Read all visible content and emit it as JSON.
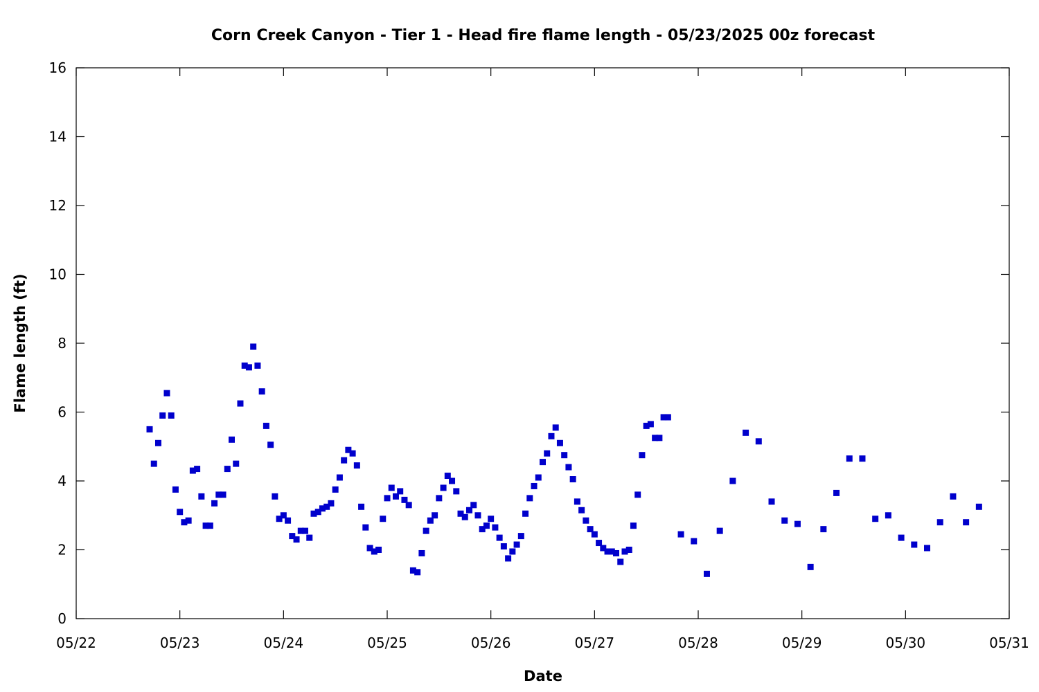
{
  "chart_data": {
    "type": "scatter",
    "title": "Corn Creek Canyon - Tier 1 - Head fire flame length - 05/23/2025 00z forecast",
    "xlabel": "Date",
    "ylabel": "Flame length (ft)",
    "x_ticks": [
      "05/22",
      "05/23",
      "05/24",
      "05/25",
      "05/26",
      "05/27",
      "05/28",
      "05/29",
      "05/30",
      "05/31"
    ],
    "y_ticks": [
      "0",
      "2",
      "4",
      "6",
      "8",
      "10",
      "12",
      "14",
      "16"
    ],
    "ylim": [
      0,
      16
    ],
    "xlim": [
      "05/22 00:00",
      "05/31 00:00"
    ],
    "grid": false,
    "marker_color": "#0000cc",
    "series": [
      {
        "x": [
          "05/22 17:00",
          "05/22 18:00",
          "05/22 19:00",
          "05/22 20:00",
          "05/22 21:00",
          "05/22 22:00",
          "05/22 23:00",
          "05/23 00:00",
          "05/23 01:00",
          "05/23 02:00",
          "05/23 03:00",
          "05/23 04:00",
          "05/23 05:00",
          "05/23 06:00",
          "05/23 07:00",
          "05/23 08:00",
          "05/23 09:00",
          "05/23 10:00",
          "05/23 11:00",
          "05/23 12:00",
          "05/23 13:00",
          "05/23 14:00",
          "05/23 15:00",
          "05/23 16:00",
          "05/23 17:00",
          "05/23 18:00",
          "05/23 19:00",
          "05/23 20:00",
          "05/23 21:00",
          "05/23 22:00",
          "05/23 23:00",
          "05/24 00:00",
          "05/24 01:00",
          "05/24 02:00",
          "05/24 03:00",
          "05/24 04:00",
          "05/24 05:00",
          "05/24 06:00",
          "05/24 07:00",
          "05/24 08:00",
          "05/24 09:00",
          "05/24 10:00",
          "05/24 11:00",
          "05/24 12:00",
          "05/24 13:00",
          "05/24 14:00",
          "05/24 15:00",
          "05/24 16:00",
          "05/24 17:00",
          "05/24 18:00",
          "05/24 19:00",
          "05/24 20:00",
          "05/24 21:00",
          "05/24 22:00",
          "05/24 23:00",
          "05/25 00:00",
          "05/25 01:00",
          "05/25 02:00",
          "05/25 03:00",
          "05/25 04:00",
          "05/25 05:00",
          "05/25 06:00",
          "05/25 07:00",
          "05/25 08:00",
          "05/25 09:00",
          "05/25 10:00",
          "05/25 11:00",
          "05/25 12:00",
          "05/25 13:00",
          "05/25 14:00",
          "05/25 15:00",
          "05/25 16:00",
          "05/25 17:00",
          "05/25 18:00",
          "05/25 19:00",
          "05/25 20:00",
          "05/25 21:00",
          "05/25 22:00",
          "05/25 23:00",
          "05/26 00:00",
          "05/26 01:00",
          "05/26 02:00",
          "05/26 03:00",
          "05/26 04:00",
          "05/26 05:00",
          "05/26 06:00",
          "05/26 07:00",
          "05/26 08:00",
          "05/26 09:00",
          "05/26 10:00",
          "05/26 11:00",
          "05/26 12:00",
          "05/26 13:00",
          "05/26 14:00",
          "05/26 15:00",
          "05/26 16:00",
          "05/26 17:00",
          "05/26 18:00",
          "05/26 19:00",
          "05/26 20:00",
          "05/26 21:00",
          "05/26 22:00",
          "05/26 23:00",
          "05/27 00:00",
          "05/27 01:00",
          "05/27 02:00",
          "05/27 03:00",
          "05/27 04:00",
          "05/27 05:00",
          "05/27 06:00",
          "05/27 07:00",
          "05/27 08:00",
          "05/27 09:00",
          "05/27 10:00",
          "05/27 11:00",
          "05/27 12:00",
          "05/27 13:00",
          "05/27 14:00",
          "05/27 15:00",
          "05/27 16:00",
          "05/27 17:00",
          "05/27 20:00",
          "05/27 23:00",
          "05/28 02:00",
          "05/28 05:00",
          "05/28 08:00",
          "05/28 11:00",
          "05/28 14:00",
          "05/28 17:00",
          "05/28 20:00",
          "05/28 23:00",
          "05/29 02:00",
          "05/29 05:00",
          "05/29 08:00",
          "05/29 11:00",
          "05/29 14:00",
          "05/29 17:00",
          "05/29 20:00",
          "05/29 23:00",
          "05/30 02:00",
          "05/30 05:00",
          "05/30 08:00",
          "05/30 11:00",
          "05/30 14:00",
          "05/30 17:00"
        ],
        "y": [
          5.5,
          4.5,
          5.1,
          5.9,
          6.55,
          5.9,
          3.75,
          3.1,
          2.8,
          2.85,
          4.3,
          4.35,
          3.55,
          2.7,
          2.7,
          3.35,
          3.6,
          3.6,
          4.35,
          5.2,
          4.5,
          6.25,
          7.35,
          7.3,
          7.9,
          7.35,
          6.6,
          5.6,
          5.05,
          3.55,
          2.9,
          3.0,
          2.85,
          2.4,
          2.3,
          2.55,
          2.55,
          2.35,
          3.05,
          3.1,
          3.2,
          3.25,
          3.35,
          3.75,
          4.1,
          4.6,
          4.9,
          4.8,
          4.45,
          3.25,
          2.65,
          2.05,
          1.95,
          2.0,
          2.9,
          3.5,
          3.8,
          3.55,
          3.7,
          3.45,
          3.3,
          1.4,
          1.35,
          1.9,
          2.55,
          2.85,
          3.0,
          3.5,
          3.8,
          4.15,
          4.0,
          3.7,
          3.05,
          2.95,
          3.15,
          3.3,
          3.0,
          2.6,
          2.7,
          2.9,
          2.65,
          2.35,
          2.1,
          1.75,
          1.95,
          2.15,
          2.4,
          3.05,
          3.5,
          3.85,
          4.1,
          4.55,
          4.8,
          5.3,
          5.55,
          5.1,
          4.75,
          4.4,
          4.05,
          3.4,
          3.15,
          2.85,
          2.6,
          2.45,
          2.2,
          2.05,
          1.95,
          1.95,
          1.9,
          1.65,
          1.95,
          2.0,
          2.7,
          3.6,
          4.75,
          5.6,
          5.65,
          5.25,
          5.25,
          5.85,
          5.85,
          2.45,
          2.25,
          1.3,
          2.55,
          4.0,
          5.4,
          5.15,
          3.4,
          2.85,
          2.75,
          1.5,
          2.6,
          3.65,
          4.65,
          4.65,
          2.9,
          3.0,
          2.35,
          2.15,
          2.05,
          2.8,
          3.55,
          2.8,
          3.25
        ]
      }
    ]
  }
}
